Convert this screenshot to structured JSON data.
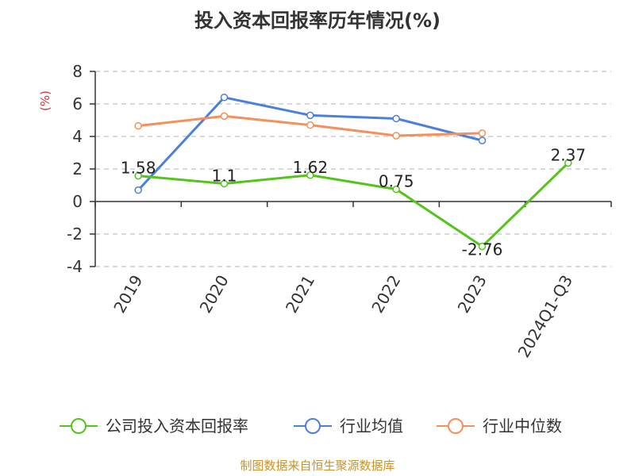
{
  "chart_data": {
    "type": "line",
    "title": "投入资本回报率历年情况(%)",
    "unit_label": "(%)",
    "categories": [
      "2019",
      "2020",
      "2021",
      "2022",
      "2023",
      "2024Q1-Q3"
    ],
    "ylim": [
      -4,
      8
    ],
    "yticks": [
      8,
      6,
      4,
      2,
      0,
      -2,
      -4
    ],
    "grid": true,
    "legend_position": "bottom",
    "series": [
      {
        "name": "公司投入资本回报率",
        "color": "#52c41a",
        "values": [
          1.58,
          1.1,
          1.62,
          0.75,
          -2.76,
          2.37
        ],
        "labels": [
          "1.58",
          "1.1",
          "1.62",
          "0.75",
          "-2.76",
          "2.37"
        ]
      },
      {
        "name": "行业均值",
        "color": "#4a7fdb",
        "values": [
          0.7,
          6.4,
          5.3,
          5.1,
          3.75,
          null
        ]
      },
      {
        "name": "行业中位数",
        "color": "#f5905a",
        "values": [
          4.65,
          5.25,
          4.7,
          4.05,
          4.2,
          null
        ]
      }
    ]
  },
  "source": {
    "text": "制图数据来自恒生聚源数据库",
    "color": "#c8922a"
  },
  "colors": {
    "unit": "#e03030",
    "grid": "#cccccc",
    "axis": "#333333"
  }
}
